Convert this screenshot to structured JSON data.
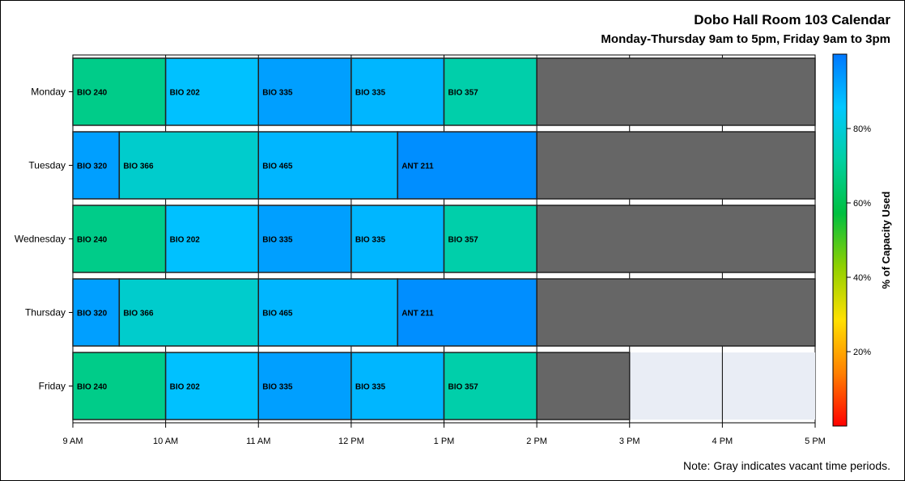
{
  "chart_data": {
    "type": "bar",
    "subtype": "horizontal-timeline",
    "title": "Dobo Hall Room 103 Calendar",
    "subtitle": "Monday-Thursday 9am to 5pm, Friday 9am to 3pm",
    "note": "Note: Gray indicates vacant time periods.",
    "x_range": [
      9,
      17
    ],
    "x_ticks": [
      {
        "value": 9,
        "label": "9 AM"
      },
      {
        "value": 10,
        "label": "10 AM"
      },
      {
        "value": 11,
        "label": "11 AM"
      },
      {
        "value": 12,
        "label": "12 PM"
      },
      {
        "value": 13,
        "label": "1 PM"
      },
      {
        "value": 14,
        "label": "2 PM"
      },
      {
        "value": 15,
        "label": "3 PM"
      },
      {
        "value": 16,
        "label": "4 PM"
      },
      {
        "value": 17,
        "label": "5 PM"
      }
    ],
    "days": [
      {
        "label": "Monday",
        "available_until": 17,
        "sessions": [
          {
            "course": "BIO 240",
            "start": 9,
            "end": 10,
            "capacity": 68
          },
          {
            "course": "BIO 202",
            "start": 10,
            "end": 11,
            "capacity": 87
          },
          {
            "course": "BIO 335",
            "start": 11,
            "end": 12,
            "capacity": 93
          },
          {
            "course": "BIO 335",
            "start": 12,
            "end": 13,
            "capacity": 89
          },
          {
            "course": "BIO 357",
            "start": 13,
            "end": 14,
            "capacity": 73
          }
        ]
      },
      {
        "label": "Tuesday",
        "available_until": 17,
        "sessions": [
          {
            "course": "BIO 320",
            "start": 9,
            "end": 9.5,
            "capacity": 93
          },
          {
            "course": "BIO 366",
            "start": 9.5,
            "end": 11,
            "capacity": 78
          },
          {
            "course": "BIO 465",
            "start": 11,
            "end": 12.5,
            "capacity": 89
          },
          {
            "course": "ANT 211",
            "start": 12.5,
            "end": 14,
            "capacity": 96
          }
        ]
      },
      {
        "label": "Wednesday",
        "available_until": 17,
        "sessions": [
          {
            "course": "BIO 240",
            "start": 9,
            "end": 10,
            "capacity": 68
          },
          {
            "course": "BIO 202",
            "start": 10,
            "end": 11,
            "capacity": 87
          },
          {
            "course": "BIO 335",
            "start": 11,
            "end": 12,
            "capacity": 93
          },
          {
            "course": "BIO 335",
            "start": 12,
            "end": 13,
            "capacity": 89
          },
          {
            "course": "BIO 357",
            "start": 13,
            "end": 14,
            "capacity": 73
          }
        ]
      },
      {
        "label": "Thursday",
        "available_until": 17,
        "sessions": [
          {
            "course": "BIO 320",
            "start": 9,
            "end": 9.5,
            "capacity": 93
          },
          {
            "course": "BIO 366",
            "start": 9.5,
            "end": 11,
            "capacity": 78
          },
          {
            "course": "BIO 465",
            "start": 11,
            "end": 12.5,
            "capacity": 89
          },
          {
            "course": "ANT 211",
            "start": 12.5,
            "end": 14,
            "capacity": 96
          }
        ]
      },
      {
        "label": "Friday",
        "available_until": 15,
        "sessions": [
          {
            "course": "BIO 240",
            "start": 9,
            "end": 10,
            "capacity": 68
          },
          {
            "course": "BIO 202",
            "start": 10,
            "end": 11,
            "capacity": 87
          },
          {
            "course": "BIO 335",
            "start": 11,
            "end": 12,
            "capacity": 93
          },
          {
            "course": "BIO 335",
            "start": 12,
            "end": 13,
            "capacity": 89
          },
          {
            "course": "BIO 357",
            "start": 13,
            "end": 14,
            "capacity": 73
          }
        ]
      }
    ],
    "vacant_color": "#666666",
    "unavailable_color": "#e9edf5",
    "colorbar": {
      "label": "% of Capacity Used",
      "ticks": [
        {
          "value": 20,
          "label": "20%"
        },
        {
          "value": 40,
          "label": "40%"
        },
        {
          "value": 60,
          "label": "60%"
        },
        {
          "value": 80,
          "label": "80%"
        }
      ],
      "range": [
        0,
        100
      ],
      "stops": [
        "#ff0000",
        "#ff8000",
        "#ffe000",
        "#90d000",
        "#00c040",
        "#00d0a0",
        "#00c8ff",
        "#0078ff"
      ]
    },
    "grid": true
  }
}
